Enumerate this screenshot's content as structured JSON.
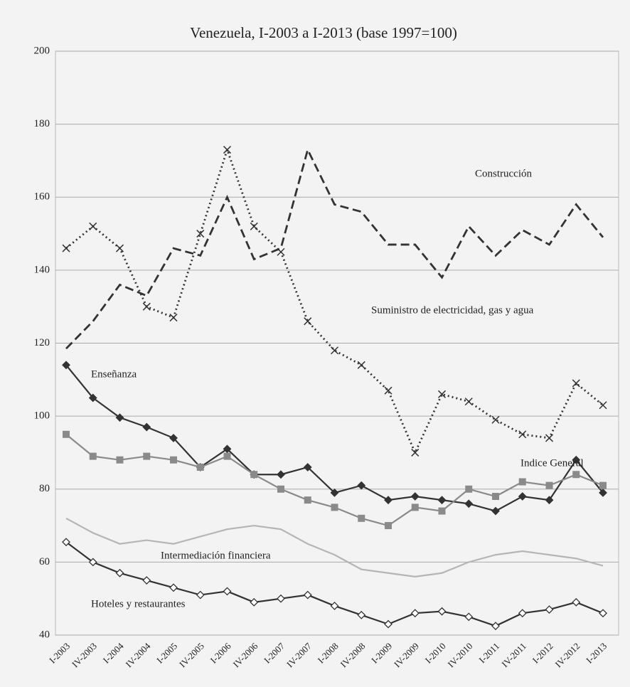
{
  "chart_data": {
    "type": "line",
    "title": "Venezuela, I-2003 a I-2013 (base 1997=100)",
    "categories": [
      "I-2003",
      "IV-2003",
      "I-2004",
      "IV-2004",
      "I-2005",
      "IV-2005",
      "I-2006",
      "IV-2006",
      "I-2007",
      "IV-2007",
      "I-2008",
      "IV-2008",
      "I-2009",
      "IV-2009",
      "I-2010",
      "IV-2010",
      "I-2011",
      "IV-2011",
      "I-2012",
      "IV-2012",
      "I-2013"
    ],
    "ylim": [
      40,
      200
    ],
    "yticks": [
      40,
      60,
      80,
      100,
      120,
      140,
      160,
      180,
      200
    ],
    "grid": true,
    "series": [
      {
        "name": "Construcción",
        "color": "#333333",
        "dash": "dashed",
        "marker": "none",
        "values": [
          118.5,
          126,
          136,
          133,
          146,
          144,
          160,
          143,
          146,
          173,
          158,
          156,
          147,
          147,
          138,
          152,
          144,
          151,
          147,
          158,
          149
        ]
      },
      {
        "name": "Suministro de electricidad, gas y agua",
        "color": "#333333",
        "dash": "dotted",
        "marker": "x",
        "values": [
          146,
          152,
          146,
          130,
          127,
          150,
          173,
          152,
          145,
          126,
          118,
          114,
          107,
          90,
          106,
          104,
          99,
          95,
          94,
          109,
          103
        ]
      },
      {
        "name": "Enseñanza",
        "color": "#333333",
        "dash": "solid",
        "marker": "diamond",
        "values": [
          114,
          105,
          99.6,
          97,
          94,
          86,
          91,
          84,
          84,
          86,
          79,
          81,
          77,
          78,
          77,
          76,
          74,
          78,
          77,
          88,
          79
        ]
      },
      {
        "name": "Indice General",
        "color": "#8a8a8a",
        "dash": "solid",
        "marker": "square",
        "values": [
          95,
          89,
          88,
          89,
          88,
          86,
          89,
          84,
          80,
          77,
          75,
          72,
          70,
          75,
          74,
          80,
          78,
          82,
          81,
          84,
          81
        ]
      },
      {
        "name": "Intermediación financiera",
        "color": "#b5b5b5",
        "dash": "solid",
        "marker": "none",
        "values": [
          72,
          68,
          65,
          66,
          65,
          67,
          69,
          70,
          69,
          65,
          62,
          58,
          57,
          56,
          57,
          60,
          62,
          63,
          62,
          61,
          59
        ]
      },
      {
        "name": "Hoteles y restaurantes",
        "color": "#333333",
        "dash": "solid",
        "marker": "open-diamond",
        "values": [
          65.5,
          60,
          57,
          55,
          53,
          51,
          52,
          49,
          50,
          51,
          48,
          45.5,
          43,
          46,
          46.5,
          45,
          42.5,
          46,
          47,
          49,
          46
        ]
      }
    ]
  }
}
